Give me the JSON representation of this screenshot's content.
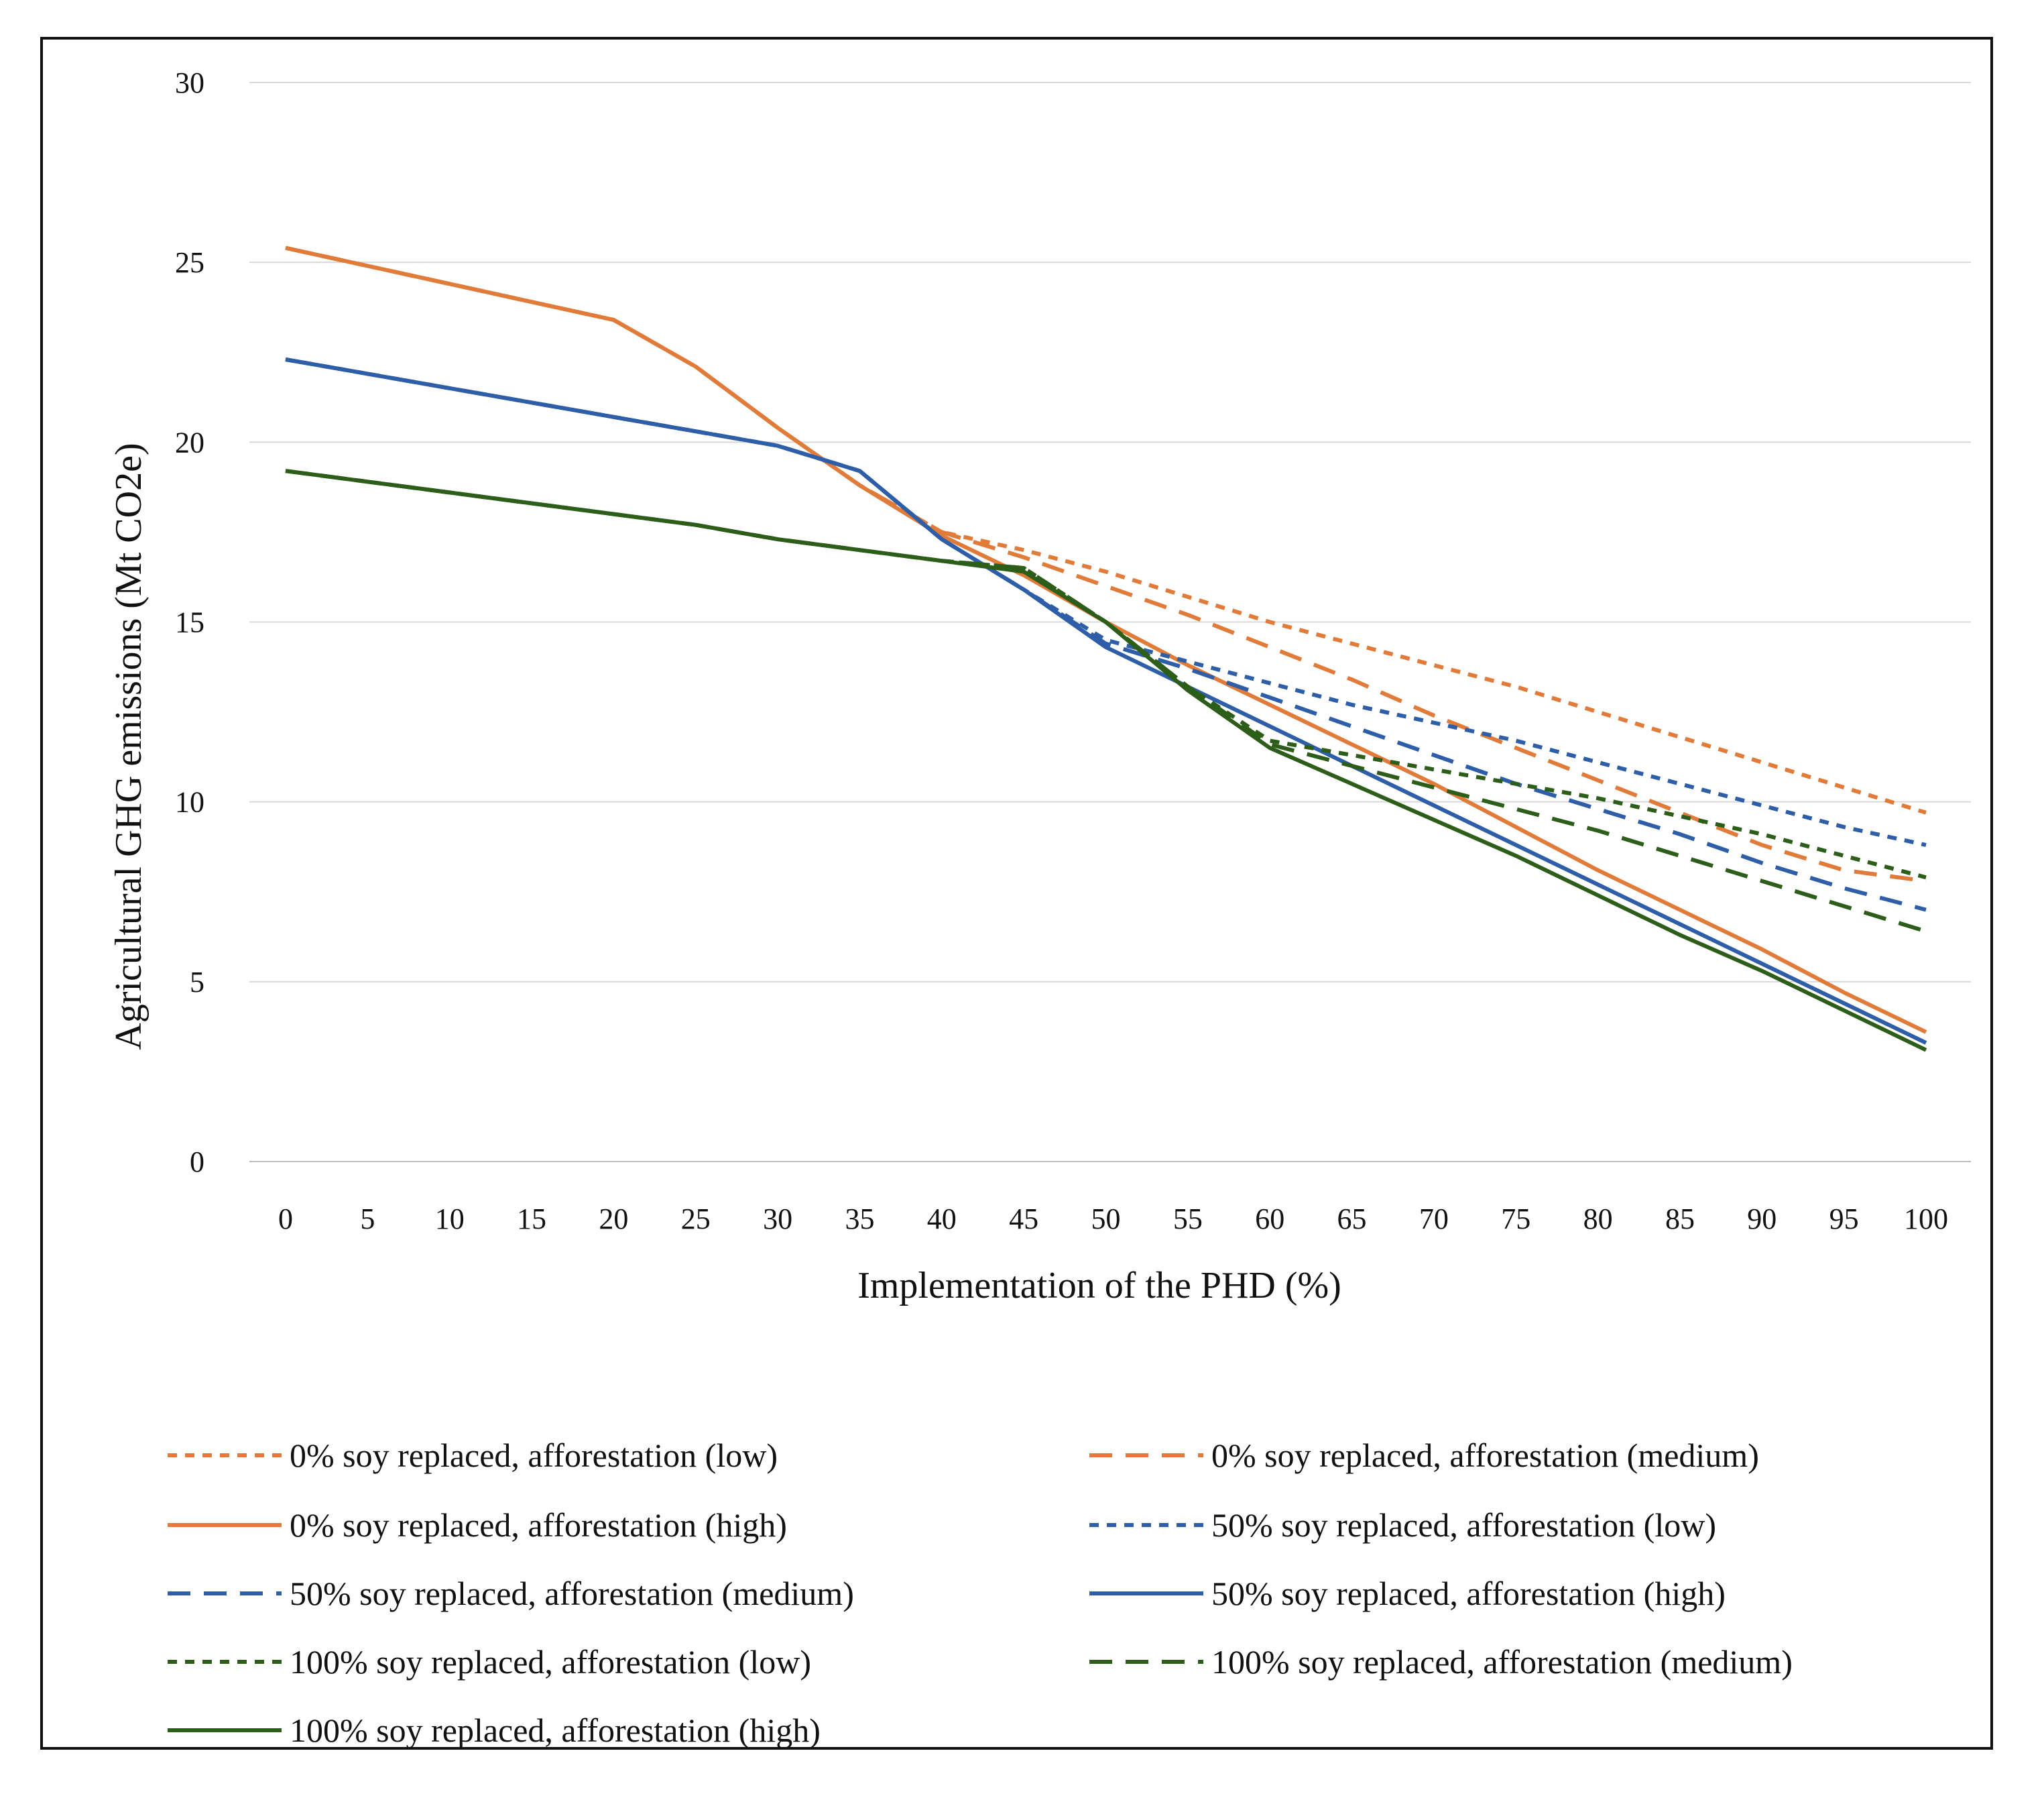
{
  "chart_data": {
    "type": "line",
    "title": "",
    "xlabel": "Implementation of the PHD (%)",
    "ylabel": "Agricultural GHG emissions (Mt CO2e)",
    "x": [
      0,
      5,
      10,
      15,
      20,
      25,
      30,
      35,
      40,
      45,
      50,
      55,
      60,
      65,
      70,
      75,
      80,
      85,
      90,
      95,
      100
    ],
    "xticks": [
      "0",
      "5",
      "10",
      "15",
      "20",
      "25",
      "30",
      "35",
      "40",
      "45",
      "50",
      "55",
      "60",
      "65",
      "70",
      "75",
      "80",
      "85",
      "90",
      "95",
      "100"
    ],
    "yticks": [
      "0",
      "5",
      "10",
      "15",
      "20",
      "25",
      "30"
    ],
    "ylim": [
      0,
      30
    ],
    "grid": "horizontal",
    "legend": "bottom",
    "series": [
      {
        "name": "0% soy replaced, afforestation (low)",
        "color": "#E07B39",
        "dash": "short",
        "values": [
          25.4,
          24.9,
          24.4,
          23.9,
          23.4,
          22.1,
          20.4,
          18.8,
          17.5,
          17.0,
          16.4,
          15.7,
          15.0,
          14.4,
          13.8,
          13.2,
          12.5,
          11.8,
          11.1,
          10.4,
          9.7
        ]
      },
      {
        "name": "0% soy replaced, afforestation (medium)",
        "color": "#E07B39",
        "dash": "long",
        "values": [
          25.4,
          24.9,
          24.4,
          23.9,
          23.4,
          22.1,
          20.4,
          18.8,
          17.5,
          16.8,
          16.0,
          15.2,
          14.3,
          13.4,
          12.4,
          11.5,
          10.6,
          9.7,
          8.8,
          8.1,
          7.8
        ]
      },
      {
        "name": "0% soy replaced, afforestation (high)",
        "color": "#E07B39",
        "dash": "solid",
        "values": [
          25.4,
          24.9,
          24.4,
          23.9,
          23.4,
          22.1,
          20.4,
          18.8,
          17.4,
          16.3,
          15.0,
          13.8,
          12.7,
          11.6,
          10.5,
          9.3,
          8.1,
          7.0,
          5.9,
          4.7,
          3.6
        ]
      },
      {
        "name": "50% soy replaced, afforestation (low)",
        "color": "#2E5EA8",
        "dash": "short",
        "values": [
          22.3,
          21.9,
          21.5,
          21.1,
          20.7,
          20.3,
          19.9,
          19.2,
          17.3,
          15.9,
          14.5,
          13.9,
          13.3,
          12.7,
          12.2,
          11.7,
          11.1,
          10.5,
          9.9,
          9.3,
          8.8
        ]
      },
      {
        "name": "50% soy replaced, afforestation (medium)",
        "color": "#2E5EA8",
        "dash": "long",
        "values": [
          22.3,
          21.9,
          21.5,
          21.1,
          20.7,
          20.3,
          19.9,
          19.2,
          17.3,
          15.9,
          14.4,
          13.7,
          12.9,
          12.1,
          11.3,
          10.5,
          9.8,
          9.1,
          8.3,
          7.6,
          7.0
        ]
      },
      {
        "name": "50% soy replaced, afforestation (high)",
        "color": "#2E5EA8",
        "dash": "solid",
        "values": [
          22.3,
          21.9,
          21.5,
          21.1,
          20.7,
          20.3,
          19.9,
          19.2,
          17.3,
          15.9,
          14.3,
          13.2,
          12.1,
          11.0,
          9.9,
          8.8,
          7.7,
          6.6,
          5.5,
          4.4,
          3.3
        ]
      },
      {
        "name": "100% soy replaced, afforestation (low)",
        "color": "#2C5E1A",
        "dash": "short",
        "values": [
          19.2,
          18.9,
          18.6,
          18.3,
          18.0,
          17.7,
          17.3,
          17.0,
          16.7,
          16.5,
          15.0,
          13.2,
          11.7,
          11.3,
          10.9,
          10.5,
          10.1,
          9.6,
          9.1,
          8.5,
          7.9
        ]
      },
      {
        "name": "100% soy replaced, afforestation (medium)",
        "color": "#2C5E1A",
        "dash": "long",
        "values": [
          19.2,
          18.9,
          18.6,
          18.3,
          18.0,
          17.7,
          17.3,
          17.0,
          16.7,
          16.5,
          15.0,
          13.2,
          11.6,
          11.0,
          10.4,
          9.8,
          9.2,
          8.5,
          7.8,
          7.1,
          6.4
        ]
      },
      {
        "name": "100% soy replaced, afforestation (high)",
        "color": "#2C5E1A",
        "dash": "solid",
        "values": [
          19.2,
          18.9,
          18.6,
          18.3,
          18.0,
          17.7,
          17.3,
          17.0,
          16.7,
          16.4,
          15.0,
          13.1,
          11.5,
          10.5,
          9.5,
          8.5,
          7.4,
          6.3,
          5.3,
          4.2,
          3.1
        ]
      }
    ]
  }
}
